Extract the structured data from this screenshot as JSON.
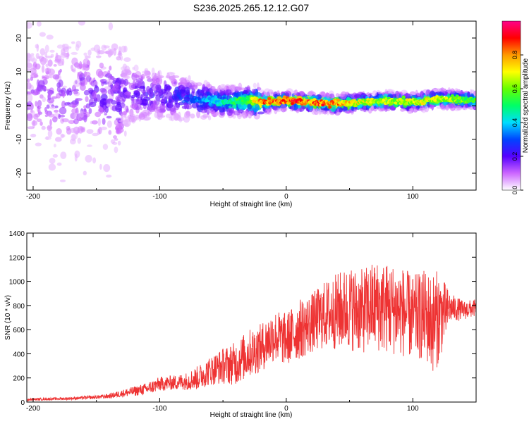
{
  "chart_data": [
    {
      "type": "heatmap",
      "title": "S236.2025.265.12.12.G07",
      "xlabel": "Height of straight line (km)",
      "ylabel": "Frequency (Hz)",
      "xlim": [
        -205,
        150
      ],
      "ylim": [
        -25,
        25
      ],
      "xticks": [
        -200,
        -100,
        0,
        100
      ],
      "yticks": [
        -20,
        -10,
        0,
        10,
        20
      ],
      "xtick_labels": [
        "-200",
        "-100",
        "0",
        "100"
      ],
      "ytick_labels": [
        "-20",
        "-10",
        "0",
        "10",
        "20"
      ],
      "colorbar": {
        "label": "Normalized spectral amplitude",
        "range": [
          0.0,
          1.0
        ],
        "ticks": [
          0.0,
          0.2,
          0.4,
          0.6,
          0.8
        ],
        "tick_labels": [
          "0.0",
          "0.2",
          "0.4",
          "0.6",
          "0.8"
        ]
      },
      "ridge": {
        "x": [
          -200,
          -150,
          -100,
          -75,
          -50,
          -30,
          -20,
          0,
          20,
          40,
          60,
          80,
          100,
          120,
          150
        ],
        "frequency": [
          3,
          3,
          3,
          2,
          1,
          1.5,
          1,
          1.5,
          1,
          0.5,
          1,
          1.5,
          1,
          2,
          1.5
        ],
        "peak_amplitude": [
          0.15,
          0.2,
          0.25,
          0.35,
          0.5,
          0.65,
          0.9,
          0.95,
          0.95,
          0.9,
          0.75,
          0.7,
          0.75,
          0.75,
          0.6
        ]
      }
    },
    {
      "type": "line",
      "xlabel": "Height of straight line (km)",
      "ylabel": "SNR (10 * v/v)",
      "xlim": [
        -205,
        150
      ],
      "ylim": [
        0,
        1400
      ],
      "xticks": [
        -200,
        -100,
        0,
        100
      ],
      "yticks": [
        0,
        200,
        400,
        600,
        800,
        1000,
        1200,
        1400
      ],
      "xtick_labels": [
        "-200",
        "-100",
        "0",
        "100"
      ],
      "ytick_labels": [
        "0",
        "200",
        "400",
        "600",
        "800",
        "1000",
        "1200",
        "1400"
      ],
      "color": "#ee3333",
      "series": [
        {
          "name": "SNR",
          "x": [
            -205,
            -190,
            -170,
            -150,
            -140,
            -130,
            -120,
            -110,
            -100,
            -90,
            -80,
            -70,
            -60,
            -50,
            -40,
            -30,
            -20,
            -10,
            0,
            10,
            20,
            30,
            40,
            50,
            60,
            70,
            80,
            90,
            100,
            110,
            115,
            120,
            130,
            140,
            150
          ],
          "values": [
            20,
            25,
            30,
            40,
            50,
            70,
            90,
            110,
            150,
            160,
            170,
            200,
            260,
            300,
            320,
            400,
            450,
            550,
            520,
            600,
            650,
            720,
            750,
            780,
            750,
            800,
            780,
            760,
            700,
            720,
            650,
            700,
            780,
            760,
            780
          ],
          "spread": [
            10,
            10,
            12,
            15,
            20,
            30,
            40,
            50,
            60,
            60,
            70,
            100,
            120,
            150,
            180,
            200,
            200,
            220,
            220,
            250,
            250,
            280,
            320,
            350,
            350,
            380,
            380,
            380,
            350,
            380,
            420,
            400,
            120,
            80,
            70
          ]
        }
      ]
    }
  ],
  "colors": {
    "line": "#ee3333",
    "axis": "#000000",
    "background": "#ffffff"
  }
}
